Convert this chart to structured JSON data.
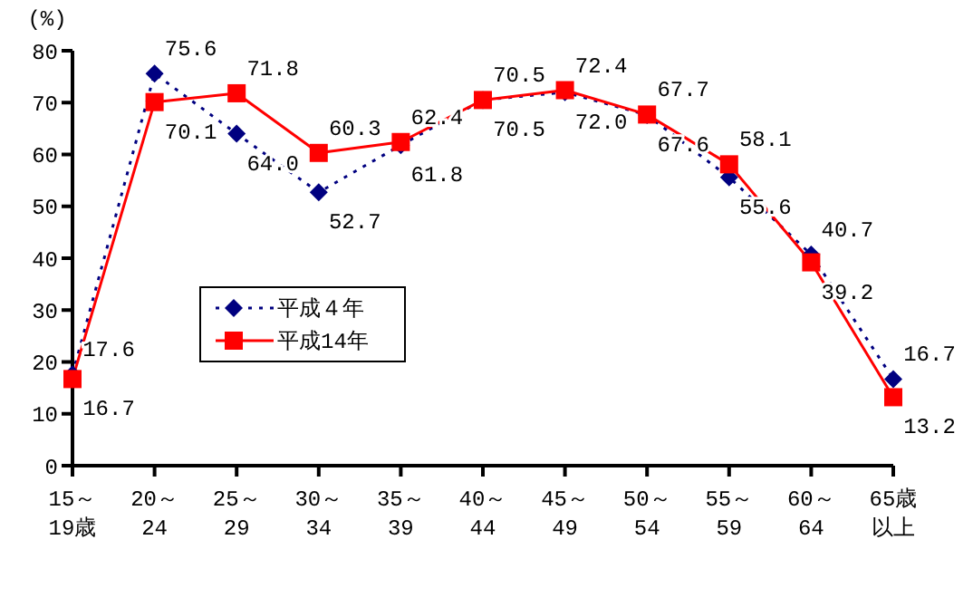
{
  "chart_data": {
    "type": "line",
    "ylabel": "(%)",
    "categories": [
      "15～19歳",
      "20～24",
      "25～29",
      "30～34",
      "35～39",
      "40～44",
      "45～49",
      "50～54",
      "55～59",
      "60～64",
      "65歳以上"
    ],
    "series": [
      {
        "name": "平成４年",
        "color": "#000080",
        "marker": "diamond",
        "line_style": "dotted",
        "values": [
          17.6,
          75.6,
          64.0,
          52.7,
          61.8,
          70.5,
          72.0,
          67.6,
          55.6,
          40.7,
          16.7
        ],
        "value_labels": [
          "17.6",
          "75.6",
          "64.0",
          "52.7",
          "61.8",
          "70.5",
          "72.0",
          "67.6",
          "55.6",
          "40.7",
          "16.7"
        ]
      },
      {
        "name": "平成14年",
        "color": "#ff0000",
        "marker": "square",
        "line_style": "solid",
        "values": [
          16.7,
          70.1,
          71.8,
          60.3,
          62.4,
          70.5,
          72.4,
          67.7,
          58.1,
          39.2,
          13.2
        ],
        "value_labels": [
          "16.7",
          "70.1",
          "71.8",
          "60.3",
          "62.4",
          "70.5",
          "72.4",
          "67.7",
          "58.1",
          "39.2",
          "13.2"
        ]
      }
    ],
    "ylim": [
      0,
      80
    ],
    "yticks": [
      0,
      10,
      20,
      30,
      40,
      50,
      60,
      70,
      80
    ],
    "grid": false,
    "legend": "left"
  }
}
